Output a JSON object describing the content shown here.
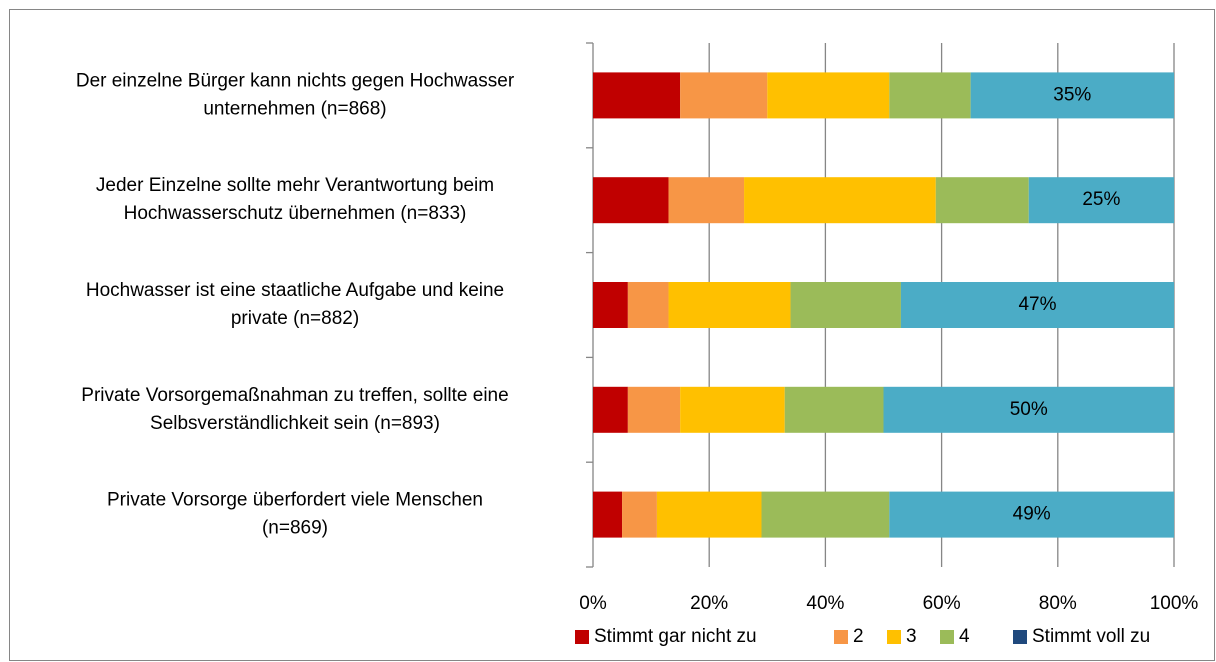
{
  "chart_data": {
    "type": "stacked_barh",
    "categories": [
      [
        "Der einzelne Bürger kann nichts gegen Hochwasser",
        "unternehmen (n=868)"
      ],
      [
        "Jeder Einzelne sollte mehr Verantwortung beim",
        "Hochwasserschutz übernehmen (n=833)"
      ],
      [
        "Hochwasser ist eine staatliche Aufgabe und keine",
        "private (n=882)"
      ],
      [
        "Private Vorsorgemaßnahman zu treffen, sollte eine",
        "Selbsverständlichkeit sein (n=893)"
      ],
      [
        "Private Vorsorge überfordert viele Menschen",
        "(n=869)"
      ]
    ],
    "series": [
      {
        "name": "Stimmt gar nicht zu",
        "color": "#c00000",
        "values": [
          15,
          13,
          6,
          6,
          5
        ]
      },
      {
        "name": "2",
        "color": "#f79646",
        "values": [
          15,
          13,
          7,
          9,
          6
        ]
      },
      {
        "name": "3",
        "color": "#ffc000",
        "values": [
          21,
          33,
          21,
          18,
          18
        ]
      },
      {
        "name": "4",
        "color": "#9bbb59",
        "values": [
          14,
          16,
          19,
          17,
          22
        ]
      },
      {
        "name": "Stimmt voll zu",
        "color": "#4bacc6",
        "legend_color": "#1f497d",
        "values": [
          35,
          25,
          47,
          50,
          49
        ],
        "value_labels": [
          "35%",
          "25%",
          "47%",
          "50%",
          "49%"
        ]
      }
    ],
    "xlim": [
      0,
      100
    ],
    "xticks": [
      {
        "value": 0,
        "label": "0%"
      },
      {
        "value": 20,
        "label": "20%"
      },
      {
        "value": 40,
        "label": "40%"
      },
      {
        "value": 60,
        "label": "60%"
      },
      {
        "value": 80,
        "label": "80%"
      },
      {
        "value": 100,
        "label": "100%"
      }
    ],
    "grid": true,
    "legend": "bottom"
  }
}
